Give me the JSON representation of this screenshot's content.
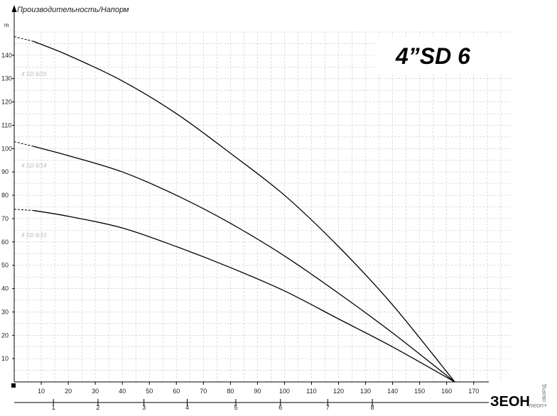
{
  "chart_data": {
    "type": "line",
    "title": "4”SD 6",
    "ylabel": "Производительность/Напорм",
    "y_unit": "m",
    "xlim": [
      0,
      184
    ],
    "ylim": [
      0,
      150
    ],
    "x_ticks": [
      10,
      20,
      30,
      40,
      50,
      60,
      70,
      80,
      90,
      100,
      110,
      120,
      130,
      140,
      150,
      160,
      170
    ],
    "y_ticks": [
      10,
      20,
      30,
      40,
      50,
      60,
      70,
      80,
      90,
      100,
      110,
      120,
      130,
      140
    ],
    "x2_ticks": [
      1,
      2,
      3,
      4,
      5,
      6,
      7,
      8
    ],
    "x2_positions": [
      14.5,
      31,
      48,
      64,
      82,
      98.5,
      116,
      132.5
    ],
    "grid": true,
    "series": [
      {
        "name": "4 SD 6/20",
        "dashed_until": 7,
        "x": [
          0,
          7,
          20,
          40,
          60,
          80,
          100,
          120,
          140,
          163
        ],
        "y": [
          148,
          146,
          140,
          129,
          115,
          98,
          80,
          58,
          33,
          0
        ]
      },
      {
        "name": "4 SD 6/14",
        "dashed_until": 7,
        "x": [
          0,
          7,
          20,
          40,
          60,
          80,
          100,
          120,
          140,
          163
        ],
        "y": [
          103,
          101,
          97,
          90,
          80,
          68,
          54,
          38,
          21,
          0
        ]
      },
      {
        "name": "4 SD 6/10",
        "dashed_until": 7,
        "x": [
          0,
          7,
          20,
          40,
          60,
          80,
          100,
          120,
          140,
          163
        ],
        "y": [
          74,
          73.5,
          71,
          66,
          58,
          49,
          39,
          27,
          15,
          0
        ]
      }
    ]
  },
  "brand": {
    "name": "ЗЕОН",
    "sub": "neon+",
    "vertical": "ОБОРУД"
  }
}
